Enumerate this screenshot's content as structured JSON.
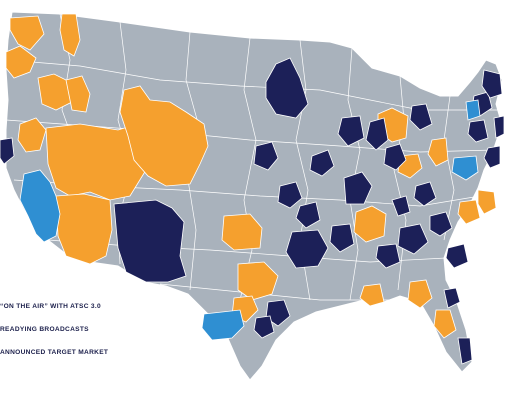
{
  "colors": {
    "background": "#ffffff",
    "land": "#a9b2bc",
    "border": "#ffffff",
    "on_air": "#1c2058",
    "readying": "#f5a02e",
    "announced": "#2f8fd2"
  },
  "legend": [
    {
      "key": "on_air",
      "label": "“ON THE AIR” WITH ATSC 3.0",
      "color": "#1c2058"
    },
    {
      "key": "readying",
      "label": "READYING BROADCASTS",
      "color": "#f5a02e"
    },
    {
      "key": "announced",
      "label": "ANNOUNCED TARGET MARKET",
      "color": "#2f8fd2"
    }
  ]
}
